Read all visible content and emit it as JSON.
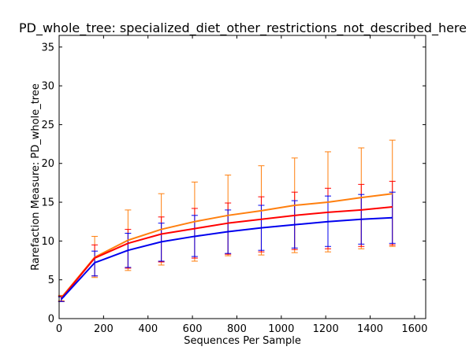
{
  "chart_data": {
    "type": "line",
    "title": "PD_whole_tree: specialized_diet_other_restrictions_not_described_here",
    "xlabel": "Sequences Per Sample",
    "ylabel": "Rarefaction Measure: PD_whole_tree",
    "xlim": [
      0,
      1650
    ],
    "ylim": [
      0,
      36.5
    ],
    "xticks": [
      0,
      200,
      400,
      600,
      800,
      1000,
      1200,
      1400,
      1600
    ],
    "yticks": [
      0,
      5,
      10,
      15,
      20,
      25,
      30,
      35
    ],
    "grid": false,
    "legend": "none",
    "x": [
      10,
      160,
      310,
      460,
      610,
      760,
      910,
      1060,
      1210,
      1360,
      1500
    ],
    "series": [
      {
        "color": "#ff7f0e",
        "y": [
          2.7,
          7.9,
          10.1,
          11.5,
          12.5,
          13.3,
          13.9,
          14.6,
          15.0,
          15.6,
          16.1
        ],
        "err_low": [
          2.3,
          5.3,
          6.2,
          6.9,
          7.4,
          8.1,
          8.2,
          8.5,
          8.6,
          9.0,
          9.3
        ],
        "err_high": [
          3.0,
          10.6,
          14.0,
          16.1,
          17.6,
          18.5,
          19.7,
          20.7,
          21.5,
          22.0,
          23.0
        ]
      },
      {
        "color": "#ff0000",
        "y": [
          2.6,
          7.8,
          9.7,
          10.9,
          11.6,
          12.3,
          12.8,
          13.3,
          13.7,
          14.0,
          14.4
        ],
        "err_low": [
          2.2,
          5.5,
          6.5,
          7.3,
          7.8,
          8.3,
          8.6,
          8.9,
          9.0,
          9.3,
          9.5
        ],
        "err_high": [
          2.9,
          9.5,
          11.5,
          13.1,
          14.2,
          14.9,
          15.7,
          16.3,
          16.8,
          17.3,
          17.7
        ]
      },
      {
        "color": "#0000ee",
        "y": [
          2.5,
          7.2,
          8.8,
          9.9,
          10.6,
          11.2,
          11.7,
          12.1,
          12.5,
          12.8,
          13.0
        ],
        "err_low": [
          2.2,
          5.5,
          6.6,
          7.4,
          8.0,
          8.4,
          8.8,
          9.1,
          9.3,
          9.6,
          9.7
        ],
        "err_high": [
          2.8,
          8.7,
          11.0,
          12.3,
          13.3,
          14.0,
          14.6,
          15.2,
          15.8,
          16.0,
          16.3
        ]
      }
    ]
  }
}
